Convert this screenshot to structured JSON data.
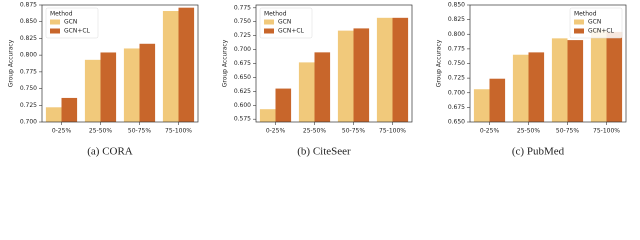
{
  "chart_data": [
    {
      "type": "bar",
      "caption": "(a) CORA",
      "ylabel": "Group Accuracy",
      "legend_title": "Method",
      "legend": "upper left",
      "categories": [
        "0-25%",
        "25-50%",
        "50-75%",
        "75-100%"
      ],
      "series": [
        {
          "name": "GCN",
          "color": "#f1c97b",
          "values": [
            0.722,
            0.793,
            0.81,
            0.866
          ]
        },
        {
          "name": "GCN+CL",
          "color": "#c8662b",
          "values": [
            0.736,
            0.804,
            0.817,
            0.871
          ]
        }
      ],
      "ylim": [
        0.7,
        0.875
      ],
      "yticks": [
        {
          "value": 0.7,
          "label": "0.700"
        },
        {
          "value": 0.725,
          "label": "0.725"
        },
        {
          "value": 0.75,
          "label": "0.750"
        },
        {
          "value": 0.775,
          "label": "0.775"
        },
        {
          "value": 0.8,
          "label": "0.800"
        },
        {
          "value": 0.825,
          "label": "0.825"
        },
        {
          "value": 0.85,
          "label": "0.850"
        },
        {
          "value": 0.875,
          "label": "0.875"
        }
      ]
    },
    {
      "type": "bar",
      "caption": "(b) CiteSeer",
      "ylabel": "Group Accuracy",
      "legend_title": "Method",
      "legend": "upper left",
      "categories": [
        "0-25%",
        "25-50%",
        "50-75%",
        "75-100%"
      ],
      "series": [
        {
          "name": "GCN",
          "color": "#f1c97b",
          "values": [
            0.593,
            0.677,
            0.734,
            0.757
          ]
        },
        {
          "name": "GCN+CL",
          "color": "#c8662b",
          "values": [
            0.63,
            0.695,
            0.738,
            0.757
          ]
        }
      ],
      "ylim": [
        0.57,
        0.78
      ],
      "yticks": [
        {
          "value": 0.575,
          "label": "0.575"
        },
        {
          "value": 0.6,
          "label": "0.600"
        },
        {
          "value": 0.625,
          "label": "0.625"
        },
        {
          "value": 0.65,
          "label": "0.650"
        },
        {
          "value": 0.675,
          "label": "0.675"
        },
        {
          "value": 0.7,
          "label": "0.700"
        },
        {
          "value": 0.725,
          "label": "0.725"
        },
        {
          "value": 0.75,
          "label": "0.750"
        },
        {
          "value": 0.775,
          "label": "0.775"
        }
      ]
    },
    {
      "type": "bar",
      "caption": "(c) PubMed",
      "ylabel": "Group Accuracy",
      "legend_title": "Method",
      "legend": "upper right",
      "categories": [
        "0-25%",
        "25-50%",
        "50-75%",
        "75-100%"
      ],
      "series": [
        {
          "name": "GCN",
          "color": "#f1c97b",
          "values": [
            0.706,
            0.765,
            0.793,
            0.808
          ]
        },
        {
          "name": "GCN+CL",
          "color": "#c8662b",
          "values": [
            0.724,
            0.769,
            0.79,
            0.804
          ]
        }
      ],
      "ylim": [
        0.65,
        0.85
      ],
      "yticks": [
        {
          "value": 0.65,
          "label": "0.650"
        },
        {
          "value": 0.675,
          "label": "0.675"
        },
        {
          "value": 0.7,
          "label": "0.700"
        },
        {
          "value": 0.725,
          "label": "0.725"
        },
        {
          "value": 0.75,
          "label": "0.750"
        },
        {
          "value": 0.775,
          "label": "0.775"
        },
        {
          "value": 0.8,
          "label": "0.800"
        },
        {
          "value": 0.825,
          "label": "0.825"
        },
        {
          "value": 0.85,
          "label": "0.850"
        }
      ]
    }
  ]
}
